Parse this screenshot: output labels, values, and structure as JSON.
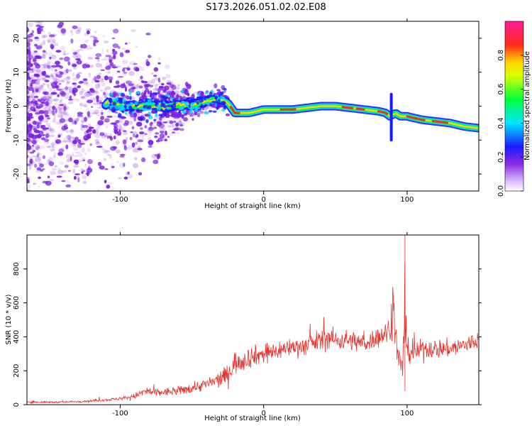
{
  "title": "S173.2026.051.02.02.E08",
  "colors": {
    "snr_line": "#e8312b",
    "spectrogram_noise": "#7a1fe0",
    "axis": "#000000"
  },
  "chart_data": [
    {
      "type": "heatmap",
      "name": "spectrogram",
      "xlabel": "Height of straight line (km)",
      "ylabel": "Frequency (Hz)",
      "xlim": [
        -165,
        150
      ],
      "ylim": [
        -25,
        25
      ],
      "xticks": [
        -100,
        0,
        100
      ],
      "yticks": [
        -20,
        -10,
        0,
        10,
        20
      ],
      "colorbar": {
        "label": "Normalized spectral amplitude",
        "range": [
          0,
          1
        ],
        "ticks": [
          "0.0",
          "0.2",
          "0.4",
          "0.6",
          "0.8"
        ],
        "colormap": "rainbow (white-violet-blue-cyan-green-yellow-red-magenta)"
      },
      "ridge": {
        "description": "Dominant frequency trace vs height",
        "x": [
          -110,
          -90,
          -70,
          -50,
          -40,
          -30,
          -25,
          -20,
          -10,
          0,
          10,
          20,
          30,
          40,
          50,
          60,
          70,
          80,
          85,
          88,
          92,
          95,
          100,
          110,
          120,
          130,
          140,
          150
        ],
        "y": [
          1,
          0,
          0,
          0.5,
          1.5,
          2,
          1,
          -2,
          -2,
          -1,
          -1,
          -1,
          -0.5,
          0,
          0,
          -0.5,
          -1,
          -1.5,
          -2,
          -3,
          -2,
          -3,
          -3,
          -4,
          -4.5,
          -5,
          -6,
          -6.5
        ]
      }
    },
    {
      "type": "line",
      "name": "snr",
      "xlabel": "Height of straight line (km)",
      "ylabel": "SNR (10 * v/v)",
      "xlim": [
        -165,
        150
      ],
      "ylim": [
        0,
        1000
      ],
      "xticks": [
        -100,
        0,
        100
      ],
      "yticks": [
        0,
        200,
        400,
        600,
        800
      ],
      "series": [
        {
          "name": "SNR",
          "x": [
            -165,
            -140,
            -120,
            -100,
            -90,
            -82,
            -75,
            -60,
            -50,
            -40,
            -30,
            -25,
            -22,
            -20,
            -15,
            -10,
            -5,
            0,
            10,
            20,
            30,
            40,
            45,
            50,
            60,
            70,
            75,
            80,
            85,
            88,
            90,
            93,
            95,
            97,
            98,
            100,
            105,
            110,
            120,
            130,
            140,
            150
          ],
          "mean": [
            15,
            15,
            22,
            35,
            50,
            80,
            70,
            80,
            100,
            120,
            150,
            180,
            220,
            250,
            260,
            280,
            290,
            300,
            320,
            340,
            350,
            380,
            400,
            380,
            380,
            360,
            380,
            400,
            420,
            450,
            600,
            320,
            250,
            200,
            500,
            320,
            300,
            330,
            330,
            330,
            350,
            380
          ],
          "spread": [
            10,
            10,
            12,
            18,
            30,
            60,
            45,
            50,
            60,
            70,
            90,
            110,
            120,
            130,
            120,
            120,
            110,
            110,
            110,
            100,
            110,
            120,
            130,
            120,
            110,
            110,
            110,
            120,
            130,
            150,
            300,
            150,
            150,
            130,
            450,
            130,
            110,
            110,
            110,
            100,
            110,
            110
          ]
        }
      ]
    }
  ]
}
